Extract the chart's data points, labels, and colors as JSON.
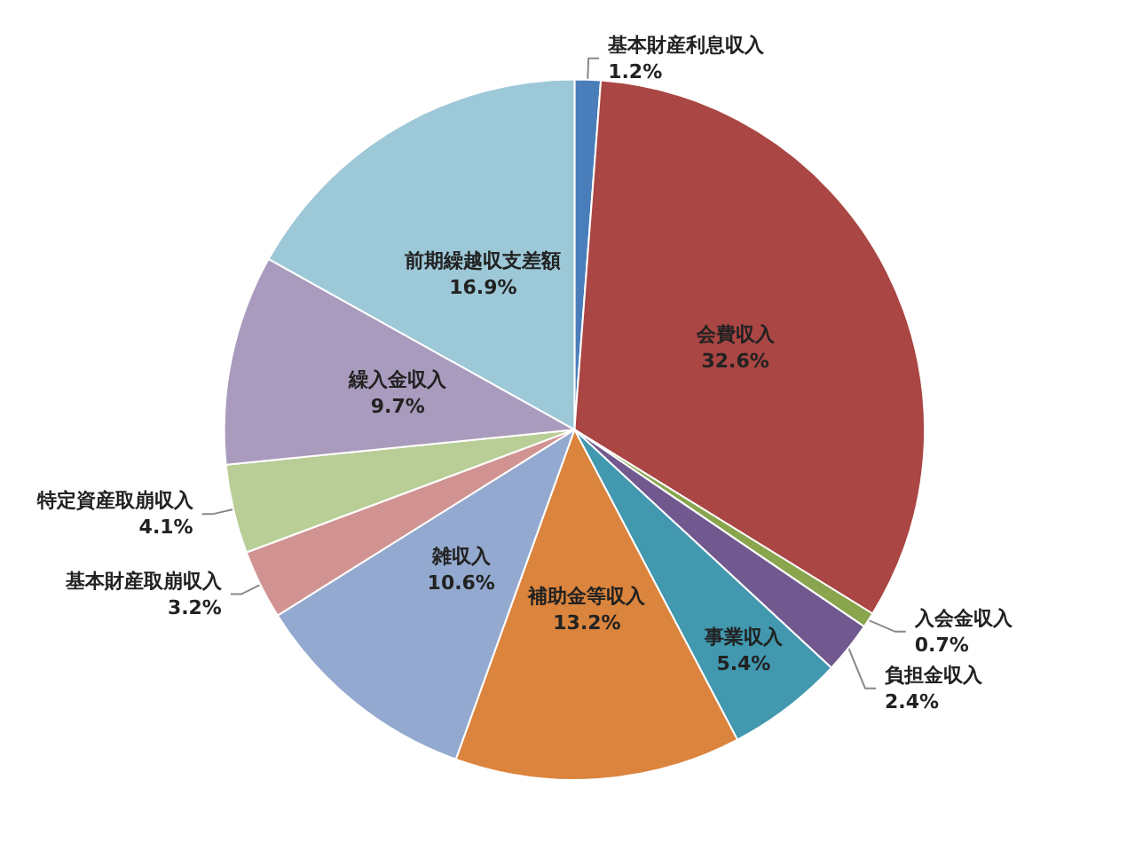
{
  "chart_data": {
    "type": "pie",
    "categories": [
      "基本財産利息収入",
      "会費収入",
      "入会金収入",
      "負担金収入",
      "事業収入",
      "補助金等収入",
      "雑収入",
      "基本財産取崩収入",
      "特定資産取崩収入",
      "繰入金収入",
      "前期繰越収支差額"
    ],
    "values": [
      1.2,
      32.6,
      0.7,
      2.4,
      5.4,
      13.2,
      10.6,
      3.2,
      4.1,
      9.7,
      16.9
    ],
    "colors": [
      "#4a7ebb",
      "#aa4643",
      "#89a54e",
      "#71588f",
      "#4198af",
      "#db843d",
      "#93a9cf",
      "#d19392",
      "#b9cd96",
      "#a99bbd",
      "#9dc8d8"
    ],
    "value_labels": [
      "1.2%",
      "32.6%",
      "0.7%",
      "2.4%",
      "5.4%",
      "13.2%",
      "10.6%",
      "3.2%",
      "4.1%",
      "9.7%",
      "16.9%"
    ]
  }
}
